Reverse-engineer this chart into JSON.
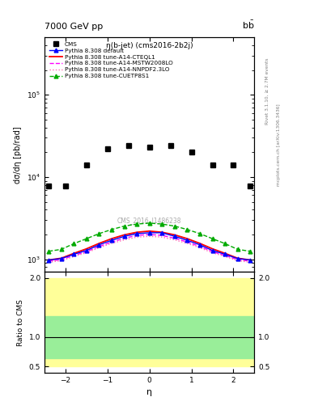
{
  "title": "7000 GeV pp",
  "title_right": "b$\\bar{b}$",
  "plot_title": "η(b-jet) (cms2016-2b2j)",
  "ylabel": "dσ/dη [pb/rad]",
  "xlabel": "η",
  "ratio_ylabel": "Ratio to CMS",
  "watermark": "CMS_2016_I1486238",
  "right_label_top": "Rivet 3.1.10, ≥ 2.7M events",
  "right_label_bot": "mcplots.cern.ch [arXiv:1306.3436]",
  "cms_x": [
    -2.4,
    -2.0,
    -1.5,
    -1.0,
    -0.5,
    0.0,
    0.5,
    1.0,
    1.5,
    2.0,
    2.4
  ],
  "cms_y": [
    7800,
    7800,
    14000,
    22000,
    24000,
    23000,
    24000,
    20000,
    14000,
    14000,
    7800
  ],
  "eta_x": [
    -2.4,
    -2.1,
    -1.8,
    -1.5,
    -1.2,
    -0.9,
    -0.6,
    -0.3,
    0.0,
    0.3,
    0.6,
    0.9,
    1.2,
    1.5,
    1.8,
    2.1,
    2.4
  ],
  "default_y": [
    980,
    1020,
    1150,
    1280,
    1500,
    1700,
    1900,
    2050,
    2100,
    2100,
    1900,
    1700,
    1500,
    1280,
    1150,
    1020,
    980
  ],
  "cteql1_y": [
    980,
    1030,
    1180,
    1340,
    1560,
    1780,
    1980,
    2130,
    2200,
    2130,
    1980,
    1780,
    1560,
    1340,
    1180,
    1030,
    980
  ],
  "mstw_y": [
    950,
    990,
    1110,
    1240,
    1430,
    1620,
    1800,
    1950,
    2000,
    1950,
    1800,
    1620,
    1430,
    1240,
    1110,
    990,
    950
  ],
  "nnpdf_y": [
    920,
    960,
    1080,
    1200,
    1380,
    1560,
    1720,
    1860,
    1900,
    1860,
    1720,
    1560,
    1380,
    1200,
    1080,
    960,
    920
  ],
  "cuetp_y": [
    1250,
    1320,
    1550,
    1780,
    2050,
    2300,
    2530,
    2680,
    2750,
    2680,
    2530,
    2300,
    2050,
    1780,
    1550,
    1320,
    1250
  ],
  "colors": {
    "default": "#0000ff",
    "cteql1": "#ff0000",
    "mstw": "#ff00ff",
    "nnpdf": "#ff69b4",
    "cuetp": "#00aa00"
  },
  "ylim": [
    700,
    500000
  ],
  "xlim": [
    -2.5,
    2.5
  ],
  "ratio_ylim": [
    0.4,
    2.1
  ],
  "ratio_yticks": [
    0.5,
    1.0,
    2.0
  ],
  "green_band": [
    0.65,
    1.35
  ],
  "yellow_band": [
    0.5,
    2.0
  ]
}
